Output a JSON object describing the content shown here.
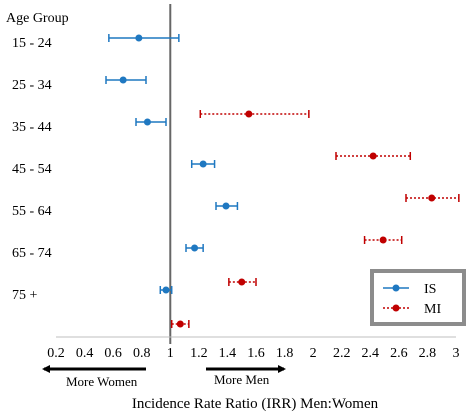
{
  "chart_data": {
    "type": "forest",
    "title": "",
    "xlabel": "Incidence Rate Ratio (IRR) Men:Women",
    "ylabel": "Age Group",
    "xlim": [
      0.2,
      3.0
    ],
    "xticks": [
      "0.2",
      "0.4",
      "0.6",
      "0.8",
      "1",
      "1.2",
      "1.4",
      "1.6",
      "1.8",
      "2",
      "2.2",
      "2.4",
      "2.6",
      "2.8",
      "3"
    ],
    "reference_line": 1,
    "categories": [
      "15 - 24",
      "25 - 34",
      "35 - 44",
      "45 - 54",
      "55 - 64",
      "65 - 74",
      "75 +"
    ],
    "series": [
      {
        "name": "IS",
        "color": "#1f78c1",
        "line_style": "solid",
        "points": [
          {
            "category": "15 - 24",
            "irr": 0.78,
            "low": 0.57,
            "high": 1.06
          },
          {
            "category": "25 - 34",
            "irr": 0.67,
            "low": 0.55,
            "high": 0.83
          },
          {
            "category": "35 - 44",
            "irr": 0.84,
            "low": 0.76,
            "high": 0.97
          },
          {
            "category": "45 - 54",
            "irr": 1.23,
            "low": 1.15,
            "high": 1.31
          },
          {
            "category": "55 - 64",
            "irr": 1.39,
            "low": 1.32,
            "high": 1.47
          },
          {
            "category": "65 - 74",
            "irr": 1.17,
            "low": 1.11,
            "high": 1.23
          },
          {
            "category": "75 +",
            "irr": 0.97,
            "low": 0.93,
            "high": 1.01
          }
        ]
      },
      {
        "name": "MI",
        "color": "#c00000",
        "line_style": "dotted",
        "points": [
          {
            "category": "15 - 24",
            "irr": null,
            "low": null,
            "high": null
          },
          {
            "category": "25 - 34",
            "irr": 1.55,
            "low": 1.21,
            "high": 1.97
          },
          {
            "category": "35 - 44",
            "irr": 2.42,
            "low": 2.16,
            "high": 2.68
          },
          {
            "category": "45 - 54",
            "irr": 2.83,
            "low": 2.65,
            "high": 3.02
          },
          {
            "category": "55 - 64",
            "irr": 2.49,
            "low": 2.36,
            "high": 2.62
          },
          {
            "category": "65 - 74",
            "irr": 1.5,
            "low": 1.41,
            "high": 1.6
          },
          {
            "category": "75 +",
            "irr": 1.07,
            "low": 1.01,
            "high": 1.13
          }
        ]
      }
    ],
    "legend": {
      "position": "bottom-right",
      "entries": [
        "IS",
        "MI"
      ],
      "border_color": "#8c8c8c"
    },
    "annotations": [
      {
        "text": "More Women",
        "direction": "left"
      },
      {
        "text": "More Men",
        "direction": "right"
      }
    ]
  }
}
